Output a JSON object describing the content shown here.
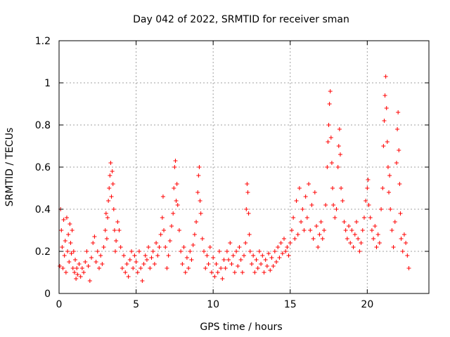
{
  "chart_data": {
    "type": "scatter",
    "title": "Day 042 of 2022, SRMTID for receiver sman",
    "xlabel": "GPS time / hours",
    "ylabel": "SRMTID / TECUs",
    "xlim": [
      0,
      24
    ],
    "ylim": [
      0,
      1.2
    ],
    "xticks": [
      0,
      5,
      10,
      15,
      20
    ],
    "xtick_labels": [
      "0",
      "5",
      "10",
      "15",
      "20"
    ],
    "yticks": [
      0,
      0.2,
      0.4,
      0.6,
      0.8,
      1.0,
      1.2
    ],
    "ytick_labels": [
      "0",
      "0.2",
      "0.4",
      "0.6",
      "0.8",
      "1",
      "1.2"
    ],
    "grid": true,
    "marker": "plus",
    "color": "#ff0000",
    "series": [
      {
        "name": "SRMTID",
        "points": [
          [
            0.05,
            0.13
          ],
          [
            0.1,
            0.4
          ],
          [
            0.15,
            0.3
          ],
          [
            0.2,
            0.22
          ],
          [
            0.25,
            0.12
          ],
          [
            0.3,
            0.35
          ],
          [
            0.35,
            0.18
          ],
          [
            0.4,
            0.25
          ],
          [
            0.45,
            0.1
          ],
          [
            0.5,
            0.36
          ],
          [
            0.55,
            0.2
          ],
          [
            0.6,
            0.28
          ],
          [
            0.65,
            0.15
          ],
          [
            0.7,
            0.33
          ],
          [
            0.75,
            0.24
          ],
          [
            0.8,
            0.19
          ],
          [
            0.85,
            0.3
          ],
          [
            0.9,
            0.12
          ],
          [
            0.95,
            0.2
          ],
          [
            1.0,
            0.1
          ],
          [
            1.05,
            0.16
          ],
          [
            1.1,
            0.07
          ],
          [
            1.15,
            0.12
          ],
          [
            1.2,
            0.09
          ],
          [
            1.3,
            0.14
          ],
          [
            1.4,
            0.08
          ],
          [
            1.5,
            0.12
          ],
          [
            1.6,
            0.1
          ],
          [
            1.7,
            0.15
          ],
          [
            1.8,
            0.2
          ],
          [
            1.9,
            0.13
          ],
          [
            2.0,
            0.06
          ],
          [
            2.1,
            0.17
          ],
          [
            2.2,
            0.24
          ],
          [
            2.3,
            0.27
          ],
          [
            2.4,
            0.15
          ],
          [
            2.5,
            0.2
          ],
          [
            2.6,
            0.12
          ],
          [
            2.7,
            0.18
          ],
          [
            2.8,
            0.14
          ],
          [
            2.9,
            0.22
          ],
          [
            3.0,
            0.3
          ],
          [
            3.05,
            0.38
          ],
          [
            3.1,
            0.26
          ],
          [
            3.15,
            0.36
          ],
          [
            3.2,
            0.44
          ],
          [
            3.25,
            0.5
          ],
          [
            3.3,
            0.56
          ],
          [
            3.35,
            0.62
          ],
          [
            3.4,
            0.46
          ],
          [
            3.45,
            0.58
          ],
          [
            3.5,
            0.52
          ],
          [
            3.55,
            0.4
          ],
          [
            3.6,
            0.3
          ],
          [
            3.65,
            0.2
          ],
          [
            3.7,
            0.25
          ],
          [
            3.8,
            0.34
          ],
          [
            3.9,
            0.3
          ],
          [
            4.0,
            0.22
          ],
          [
            4.1,
            0.12
          ],
          [
            4.2,
            0.18
          ],
          [
            4.3,
            0.1
          ],
          [
            4.4,
            0.14
          ],
          [
            4.5,
            0.08
          ],
          [
            4.6,
            0.16
          ],
          [
            4.7,
            0.2
          ],
          [
            4.8,
            0.12
          ],
          [
            4.9,
            0.18
          ],
          [
            5.0,
            0.15
          ],
          [
            5.1,
            0.1
          ],
          [
            5.2,
            0.2
          ],
          [
            5.3,
            0.12
          ],
          [
            5.4,
            0.06
          ],
          [
            5.5,
            0.14
          ],
          [
            5.6,
            0.18
          ],
          [
            5.7,
            0.16
          ],
          [
            5.8,
            0.22
          ],
          [
            5.9,
            0.12
          ],
          [
            6.0,
            0.17
          ],
          [
            6.1,
            0.2
          ],
          [
            6.2,
            0.14
          ],
          [
            6.3,
            0.24
          ],
          [
            6.4,
            0.18
          ],
          [
            6.5,
            0.22
          ],
          [
            6.6,
            0.28
          ],
          [
            6.7,
            0.36
          ],
          [
            6.75,
            0.46
          ],
          [
            6.8,
            0.3
          ],
          [
            6.9,
            0.22
          ],
          [
            7.0,
            0.12
          ],
          [
            7.1,
            0.18
          ],
          [
            7.2,
            0.25
          ],
          [
            7.3,
            0.32
          ],
          [
            7.4,
            0.38
          ],
          [
            7.45,
            0.5
          ],
          [
            7.5,
            0.6
          ],
          [
            7.55,
            0.63
          ],
          [
            7.6,
            0.44
          ],
          [
            7.65,
            0.52
          ],
          [
            7.7,
            0.42
          ],
          [
            7.8,
            0.3
          ],
          [
            7.9,
            0.2
          ],
          [
            8.0,
            0.14
          ],
          [
            8.1,
            0.22
          ],
          [
            8.2,
            0.1
          ],
          [
            8.3,
            0.17
          ],
          [
            8.4,
            0.12
          ],
          [
            8.5,
            0.2
          ],
          [
            8.6,
            0.16
          ],
          [
            8.7,
            0.23
          ],
          [
            8.8,
            0.28
          ],
          [
            8.9,
            0.34
          ],
          [
            9.0,
            0.48
          ],
          [
            9.05,
            0.56
          ],
          [
            9.1,
            0.6
          ],
          [
            9.15,
            0.44
          ],
          [
            9.2,
            0.38
          ],
          [
            9.3,
            0.26
          ],
          [
            9.4,
            0.2
          ],
          [
            9.5,
            0.12
          ],
          [
            9.6,
            0.18
          ],
          [
            9.7,
            0.14
          ],
          [
            9.8,
            0.22
          ],
          [
            9.9,
            0.1
          ],
          [
            10.0,
            0.17
          ],
          [
            10.1,
            0.08
          ],
          [
            10.2,
            0.14
          ],
          [
            10.3,
            0.1
          ],
          [
            10.4,
            0.2
          ],
          [
            10.5,
            0.12
          ],
          [
            10.6,
            0.07
          ],
          [
            10.7,
            0.16
          ],
          [
            10.8,
            0.12
          ],
          [
            10.9,
            0.2
          ],
          [
            11.0,
            0.16
          ],
          [
            11.1,
            0.24
          ],
          [
            11.2,
            0.14
          ],
          [
            11.3,
            0.18
          ],
          [
            11.4,
            0.1
          ],
          [
            11.5,
            0.2
          ],
          [
            11.6,
            0.13
          ],
          [
            11.7,
            0.22
          ],
          [
            11.8,
            0.16
          ],
          [
            11.9,
            0.1
          ],
          [
            12.0,
            0.18
          ],
          [
            12.1,
            0.24
          ],
          [
            12.15,
            0.4
          ],
          [
            12.2,
            0.52
          ],
          [
            12.25,
            0.48
          ],
          [
            12.3,
            0.38
          ],
          [
            12.35,
            0.28
          ],
          [
            12.4,
            0.2
          ],
          [
            12.5,
            0.14
          ],
          [
            12.6,
            0.18
          ],
          [
            12.7,
            0.1
          ],
          [
            12.8,
            0.16
          ],
          [
            12.9,
            0.12
          ],
          [
            13.0,
            0.2
          ],
          [
            13.1,
            0.14
          ],
          [
            13.2,
            0.18
          ],
          [
            13.3,
            0.1
          ],
          [
            13.4,
            0.16
          ],
          [
            13.5,
            0.13
          ],
          [
            13.6,
            0.19
          ],
          [
            13.7,
            0.11
          ],
          [
            13.8,
            0.17
          ],
          [
            13.9,
            0.13
          ],
          [
            14.0,
            0.2
          ],
          [
            14.1,
            0.15
          ],
          [
            14.2,
            0.22
          ],
          [
            14.3,
            0.17
          ],
          [
            14.4,
            0.24
          ],
          [
            14.5,
            0.19
          ],
          [
            14.6,
            0.26
          ],
          [
            14.7,
            0.2
          ],
          [
            14.8,
            0.22
          ],
          [
            14.9,
            0.18
          ],
          [
            15.0,
            0.24
          ],
          [
            15.1,
            0.3
          ],
          [
            15.2,
            0.36
          ],
          [
            15.3,
            0.26
          ],
          [
            15.4,
            0.44
          ],
          [
            15.5,
            0.28
          ],
          [
            15.6,
            0.5
          ],
          [
            15.7,
            0.34
          ],
          [
            15.8,
            0.4
          ],
          [
            15.9,
            0.3
          ],
          [
            16.0,
            0.46
          ],
          [
            16.1,
            0.36
          ],
          [
            16.2,
            0.52
          ],
          [
            16.3,
            0.3
          ],
          [
            16.4,
            0.42
          ],
          [
            16.5,
            0.26
          ],
          [
            16.6,
            0.48
          ],
          [
            16.7,
            0.32
          ],
          [
            16.8,
            0.22
          ],
          [
            16.9,
            0.28
          ],
          [
            17.0,
            0.34
          ],
          [
            17.1,
            0.26
          ],
          [
            17.2,
            0.3
          ],
          [
            17.3,
            0.42
          ],
          [
            17.4,
            0.6
          ],
          [
            17.45,
            0.72
          ],
          [
            17.5,
            0.8
          ],
          [
            17.55,
            0.9
          ],
          [
            17.6,
            0.96
          ],
          [
            17.65,
            0.74
          ],
          [
            17.7,
            0.62
          ],
          [
            17.75,
            0.5
          ],
          [
            17.8,
            0.42
          ],
          [
            17.9,
            0.36
          ],
          [
            18.0,
            0.4
          ],
          [
            18.1,
            0.6
          ],
          [
            18.15,
            0.7
          ],
          [
            18.2,
            0.78
          ],
          [
            18.25,
            0.66
          ],
          [
            18.3,
            0.5
          ],
          [
            18.4,
            0.44
          ],
          [
            18.5,
            0.34
          ],
          [
            18.6,
            0.3
          ],
          [
            18.7,
            0.26
          ],
          [
            18.8,
            0.32
          ],
          [
            18.9,
            0.24
          ],
          [
            19.0,
            0.3
          ],
          [
            19.1,
            0.22
          ],
          [
            19.2,
            0.28
          ],
          [
            19.3,
            0.34
          ],
          [
            19.4,
            0.26
          ],
          [
            19.5,
            0.2
          ],
          [
            19.6,
            0.24
          ],
          [
            19.7,
            0.3
          ],
          [
            19.8,
            0.36
          ],
          [
            19.9,
            0.44
          ],
          [
            20.0,
            0.5
          ],
          [
            20.05,
            0.54
          ],
          [
            20.1,
            0.42
          ],
          [
            20.2,
            0.36
          ],
          [
            20.3,
            0.3
          ],
          [
            20.4,
            0.26
          ],
          [
            20.5,
            0.32
          ],
          [
            20.6,
            0.22
          ],
          [
            20.7,
            0.28
          ],
          [
            20.8,
            0.24
          ],
          [
            20.9,
            0.4
          ],
          [
            21.0,
            0.5
          ],
          [
            21.05,
            0.7
          ],
          [
            21.1,
            0.82
          ],
          [
            21.15,
            0.94
          ],
          [
            21.2,
            1.03
          ],
          [
            21.25,
            0.88
          ],
          [
            21.3,
            0.72
          ],
          [
            21.35,
            0.6
          ],
          [
            21.4,
            0.48
          ],
          [
            21.45,
            0.56
          ],
          [
            21.5,
            0.4
          ],
          [
            21.6,
            0.3
          ],
          [
            21.7,
            0.22
          ],
          [
            21.8,
            0.34
          ],
          [
            21.9,
            0.62
          ],
          [
            21.95,
            0.78
          ],
          [
            22.0,
            0.86
          ],
          [
            22.05,
            0.68
          ],
          [
            22.1,
            0.52
          ],
          [
            22.15,
            0.38
          ],
          [
            22.2,
            0.26
          ],
          [
            22.3,
            0.2
          ],
          [
            22.4,
            0.28
          ],
          [
            22.5,
            0.24
          ],
          [
            22.6,
            0.18
          ],
          [
            22.7,
            0.12
          ]
        ]
      }
    ]
  }
}
